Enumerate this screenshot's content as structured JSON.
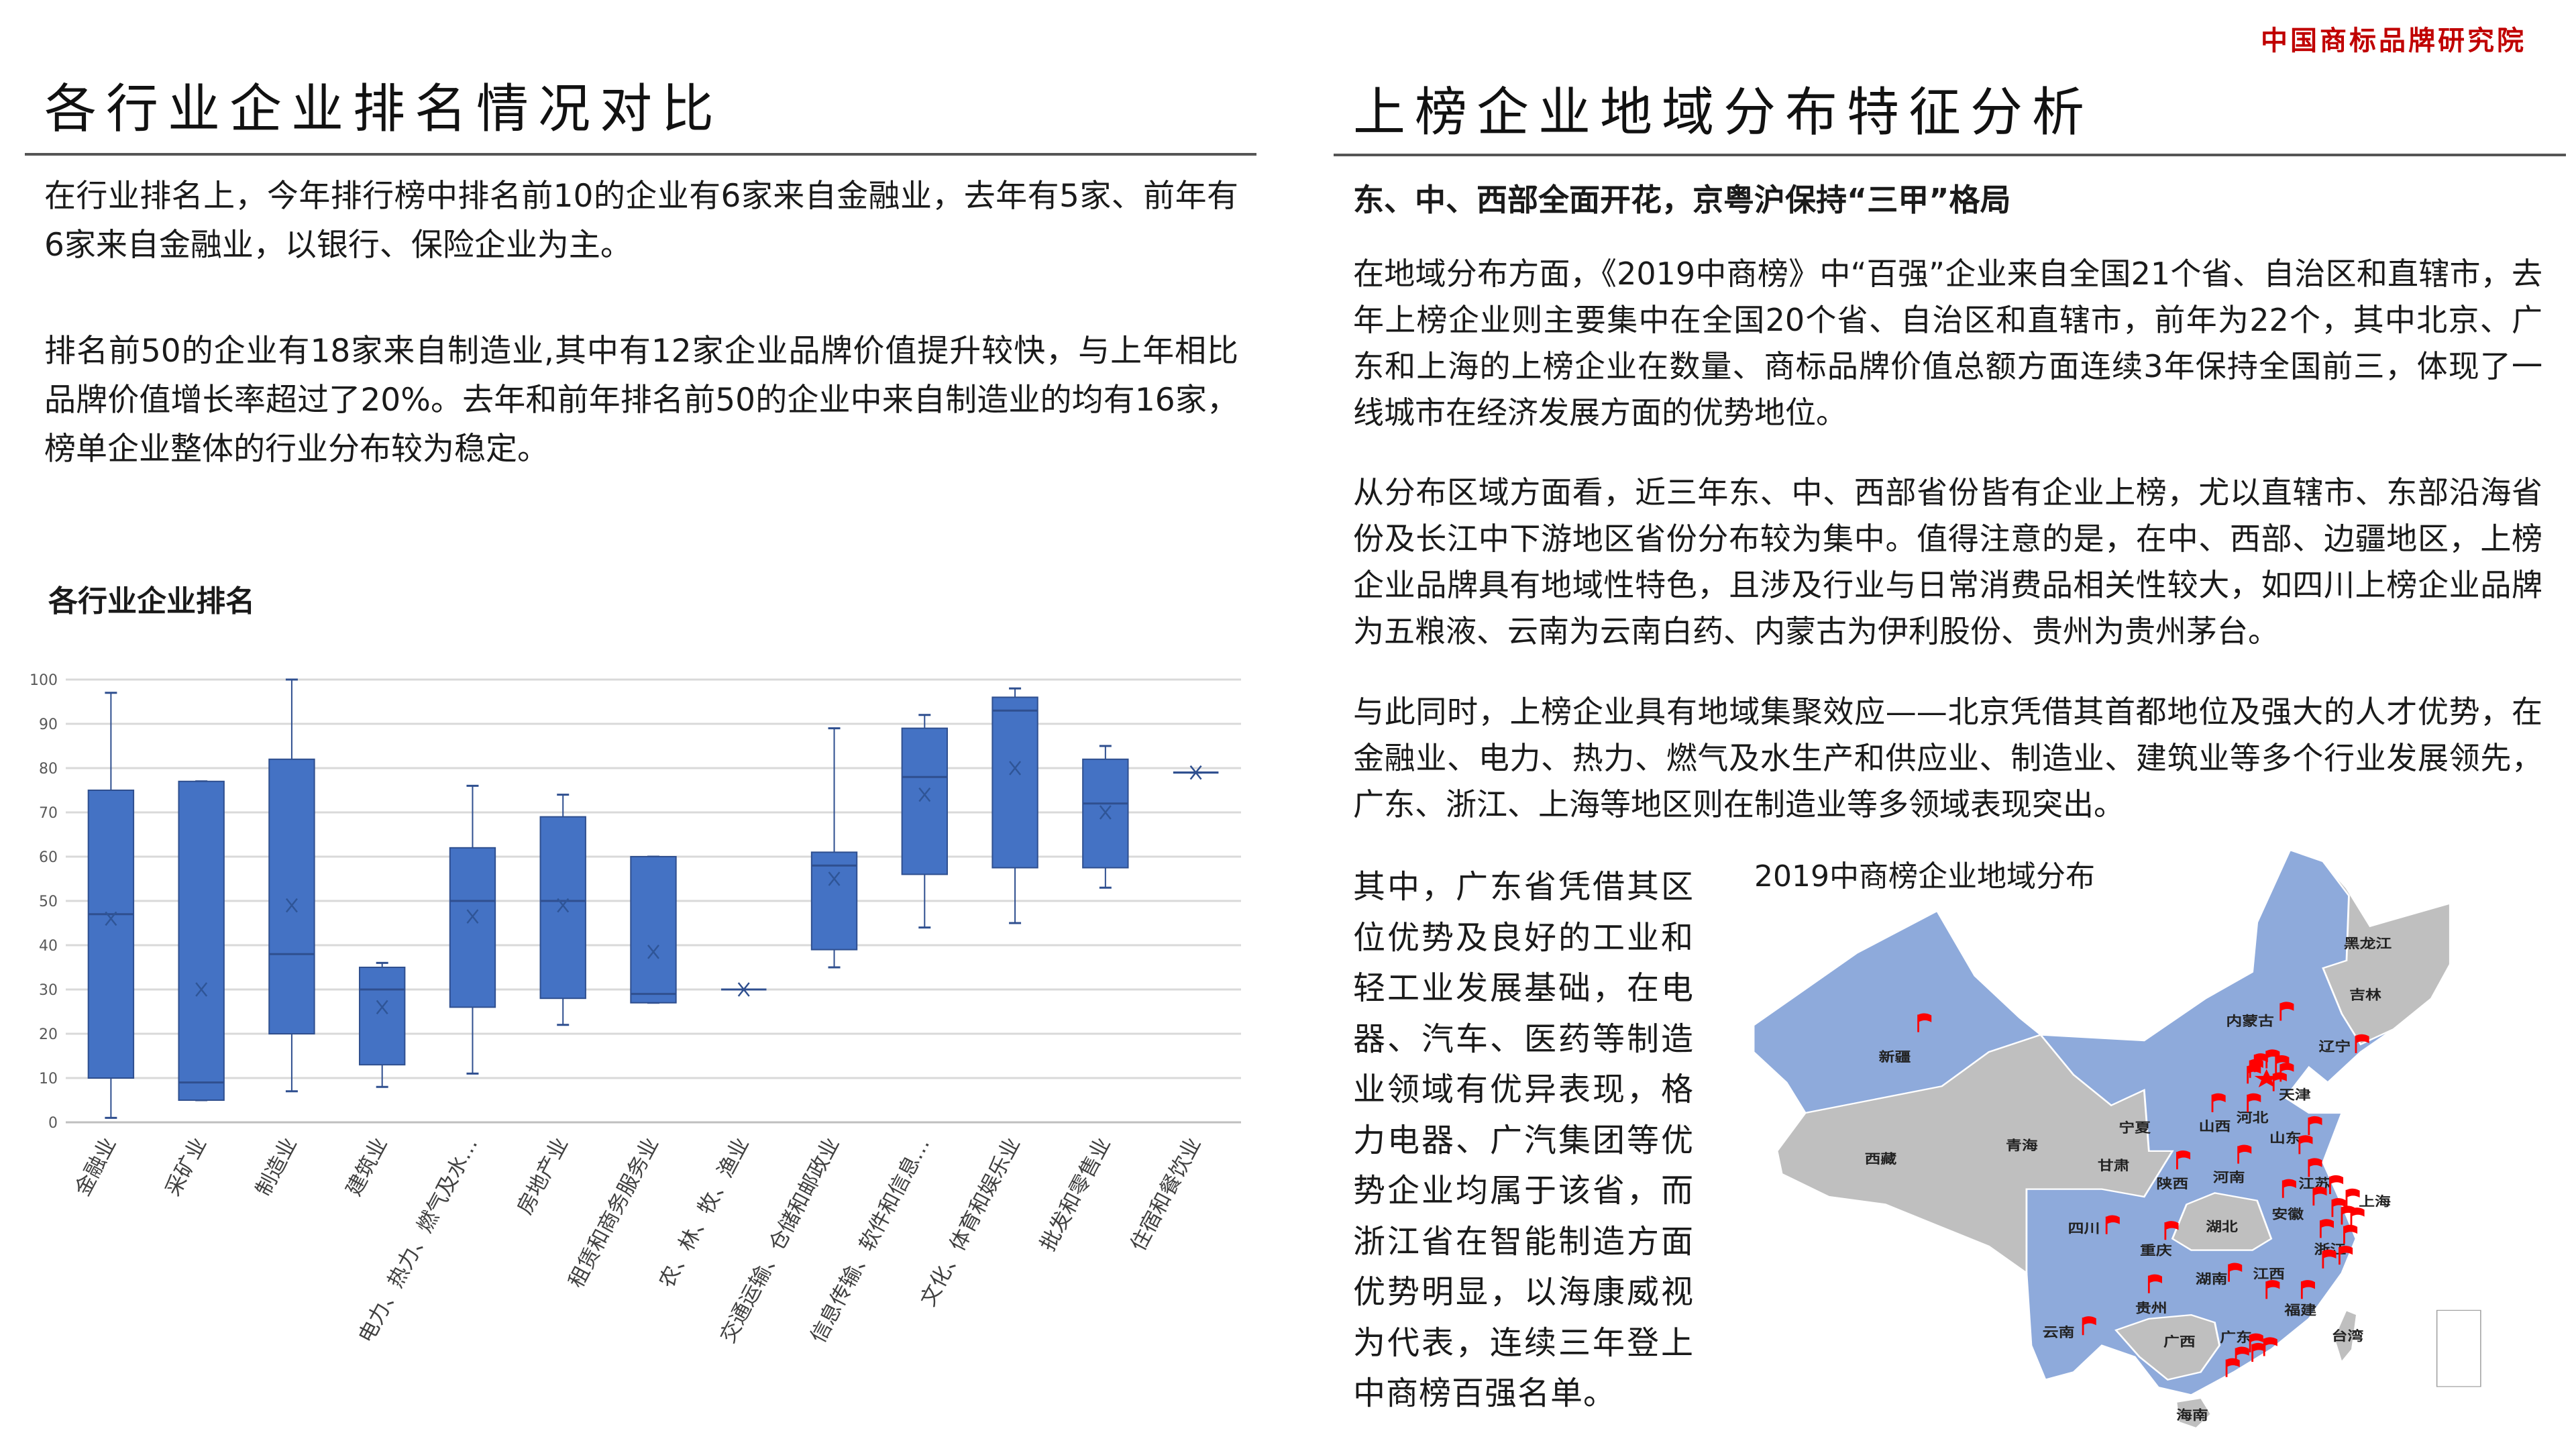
{
  "logo": "中国商标品牌研究院",
  "left": {
    "title": "各行业企业排名情况对比",
    "paragraphs": [
      "在行业排名上，今年排行榜中排名前10的企业有6家来自金融业，去年有5家、前年有6家来自金融业，以银行、保险企业为主。",
      "排名前50的企业有18家来自制造业,其中有12家企业品牌价值提升较快，与上年相比品牌价值增长率超过了20%。去年和前年排名前50的企业中来自制造业的均有16家，榜单企业整体的行业分布较为稳定。"
    ],
    "chart_title": "各行业企业排名"
  },
  "chart_data": {
    "type": "box",
    "title": "各行业企业排名",
    "ylim": [
      0,
      100
    ],
    "yticks": [
      "0",
      "10",
      "20",
      "30",
      "40",
      "50",
      "60",
      "70",
      "80",
      "90",
      "100"
    ],
    "grid": true,
    "color": "#4472c4",
    "categories": [
      "金融业",
      "采矿业",
      "制造业",
      "建筑业",
      "电力、热力、燃气及水…",
      "房地产业",
      "租赁和商务服务业",
      "农、林、牧、渔业",
      "交通运输、仓储和邮政业",
      "信息传输、软件和信息…",
      "文化、体育和娱乐业",
      "批发和零售业",
      "住宿和餐饮业"
    ],
    "series": [
      {
        "min": 1,
        "q1": 10,
        "median": 47,
        "q3": 75,
        "max": 97,
        "mean": 46
      },
      {
        "min": 5,
        "q1": 5,
        "median": 9,
        "q3": 77,
        "max": 77,
        "mean": 30
      },
      {
        "min": 7,
        "q1": 20,
        "median": 38,
        "q3": 82,
        "max": 100,
        "mean": 49
      },
      {
        "min": 8,
        "q1": 13,
        "median": 30,
        "q3": 35,
        "max": 36,
        "mean": 26
      },
      {
        "min": 11,
        "q1": 26,
        "median": 50,
        "q3": 62,
        "max": 76,
        "mean": 46.5
      },
      {
        "min": 22,
        "q1": 28,
        "median": 50,
        "q3": 69,
        "max": 74,
        "mean": 49
      },
      {
        "min": 27,
        "q1": 27,
        "median": 29,
        "q3": 60,
        "max": 60,
        "mean": 38.5
      },
      {
        "min": 30,
        "q1": 30,
        "median": 30,
        "q3": 30,
        "max": 30,
        "mean": 30
      },
      {
        "min": 35,
        "q1": 39,
        "median": 58,
        "q3": 61,
        "max": 89,
        "mean": 55
      },
      {
        "min": 44,
        "q1": 56,
        "median": 78,
        "q3": 89,
        "max": 92,
        "mean": 74
      },
      {
        "min": 45,
        "q1": 57.5,
        "median": 93,
        "q3": 96,
        "max": 98,
        "mean": 80
      },
      {
        "min": 53,
        "q1": 57.5,
        "median": 72,
        "q3": 82,
        "max": 85,
        "mean": 70
      },
      {
        "min": 79,
        "q1": 79,
        "median": 79,
        "q3": 79,
        "max": 79,
        "mean": 79
      }
    ]
  },
  "right": {
    "title": "上榜企业地域分布特征分析",
    "subtitle": "东、中、西部全面开花，京粤沪保持“三甲”格局",
    "paragraphs": [
      "在地域分布方面，《2019中商榜》中“百强”企业来自全国21个省、自治区和直辖市，去年上榜企业则主要集中在全国20个省、自治区和直辖市，前年为22个，其中北京、广东和上海的上榜企业在数量、商标品牌价值总额方面连续3年保持全国前三，体现了一线城市在经济发展方面的优势地位。",
      "从分布区域方面看，近三年东、中、西部省份皆有企业上榜，尤以直辖市、东部沿海省份及长江中下游地区省份分布较为集中。值得注意的是，在中、西部、边疆地区，上榜企业品牌具有地域性特色，且涉及行业与日常消费品相关性较大，如四川上榜企业品牌为五粮液、云南为云南白药、内蒙古为伊利股份、贵州为贵州茅台。",
      "与此同时，上榜企业具有地域集聚效应——北京凭借其首都地位及强大的人才优势，在金融业、电力、热力、燃气及水生产和供应业、制造业、建筑业等多个行业发展领先，广东、浙江、上海等地区则在制造业等多领域表现突出。"
    ],
    "column_text": "其中，广东省凭借其区位优势及良好的工业和轻工业发展基础，在电器、汽车、医药等制造业领域有优异表现，格力电器、广汽集团等优势企业均属于该省，而浙江省在智能制造方面优势明显，以海康威视为代表，连续三年登上中商榜百强名单。"
  },
  "map": {
    "title": "2019中商榜企业地域分布",
    "highlight_color": "#8eaadb",
    "other_color": "#bfbfbf",
    "marker_color": "#ff0000",
    "marker_icon": "red-flag-icon",
    "provinces": [
      "黑龙江",
      "吉林",
      "内蒙古",
      "辽宁",
      "新疆",
      "天津",
      "宁夏",
      "山西",
      "河北",
      "山东",
      "青海",
      "西藏",
      "甘肃",
      "陕西",
      "河南",
      "江苏",
      "上海",
      "安徽",
      "湖北",
      "四川",
      "重庆",
      "浙江",
      "湖南",
      "江西",
      "贵州",
      "福建",
      "云南",
      "广西",
      "广东",
      "台湾",
      "海南"
    ]
  }
}
